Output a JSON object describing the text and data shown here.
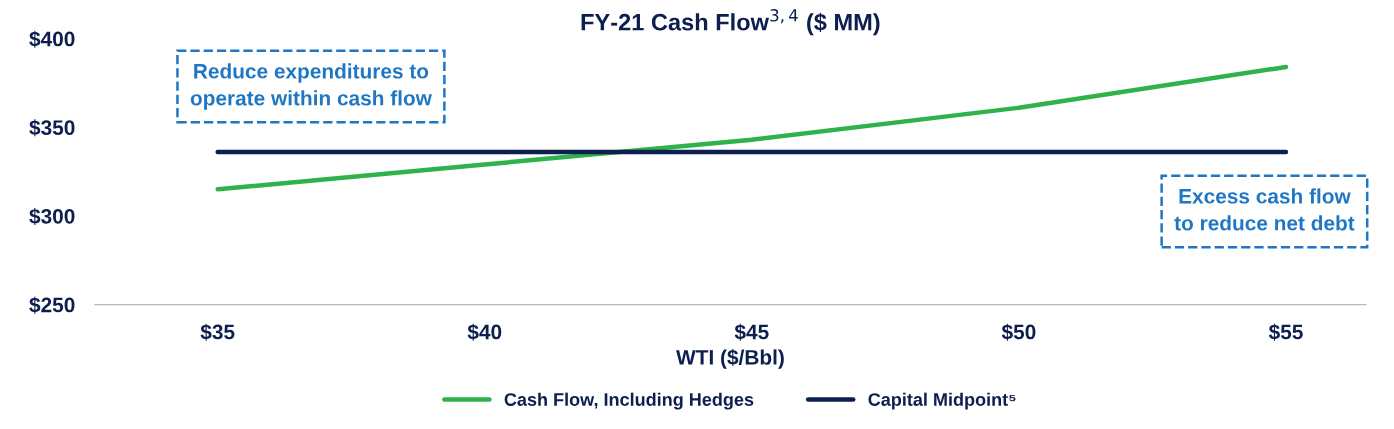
{
  "chart_data": {
    "type": "line",
    "title": "FY-21 Cash Flow$^{3,4}$ ($ MM)",
    "xlabel": "WTI ($/Bbl)",
    "x": [
      35,
      40,
      45,
      50,
      55
    ],
    "series": [
      {
        "name": "Cash Flow, Including Hedges",
        "color": "#2db34a",
        "values": [
          315,
          329,
          343,
          361,
          384
        ]
      },
      {
        "name": "Capital Midpoint⁵",
        "color": "#0c1f4f",
        "values": [
          336,
          336,
          336,
          336,
          336
        ]
      }
    ],
    "xlim": [
      32.7,
      56.5
    ],
    "xticks": [
      {
        "value": 35,
        "label": "$35"
      },
      {
        "value": 40,
        "label": "$40"
      },
      {
        "value": 45,
        "label": "$45"
      },
      {
        "value": 50,
        "label": "$50"
      },
      {
        "value": 55,
        "label": "$55"
      }
    ],
    "ylim": [
      250,
      400
    ],
    "yticks": [
      {
        "value": 250,
        "label": "$250"
      },
      {
        "value": 300,
        "label": "$300"
      },
      {
        "value": 350,
        "label": "$350"
      },
      {
        "value": 400,
        "label": "$400"
      }
    ],
    "annotations": [
      "Reduce expenditures to\noperate within cash flow",
      "Excess cash flow\nto reduce net debt"
    ],
    "legend": "bottom",
    "grid": false,
    "marker": "none",
    "line_style": "solid"
  }
}
